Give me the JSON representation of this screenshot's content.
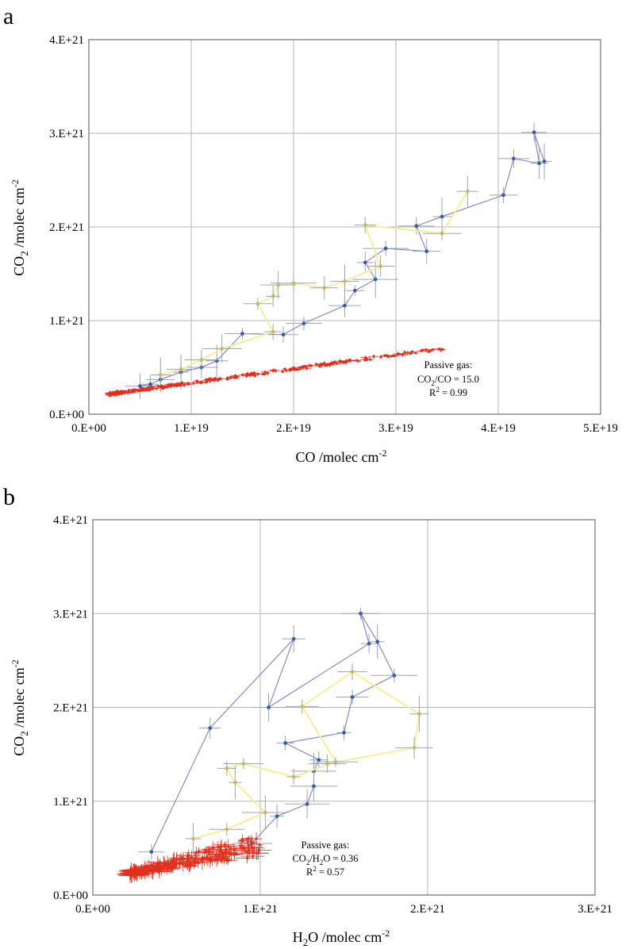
{
  "colors": {
    "blue_series": "#3a5f9a",
    "blue_line": "#8f86c9",
    "yellow_series": "#c8b86a",
    "yellow_line": "#f2ef9c",
    "red_series": "#e0301e",
    "error_bar": "#9aa3b8",
    "grid": "#b5b5b5"
  },
  "chart_data": [
    {
      "type": "scatter",
      "panel_label": "a",
      "xlabel": "CO /molec cm",
      "xlabel_sup": "-2",
      "ylabel_main": "CO",
      "ylabel_sub": "2",
      "ylabel_rest": " /molec cm",
      "ylabel_sup": "-2",
      "xlim": [
        0,
        5e+19
      ],
      "ylim": [
        0,
        4e+21
      ],
      "xticks": [
        0,
        1e+19,
        2e+19,
        3e+19,
        4e+19,
        5e+19
      ],
      "xtick_labels": [
        "0.E+00",
        "1.E+19",
        "2.E+19",
        "3.E+19",
        "4.E+19",
        "5.E+19"
      ],
      "yticks": [
        0,
        1e+21,
        2e+21,
        3e+21,
        4e+21
      ],
      "ytick_labels": [
        "0.E+00",
        "1.E+21",
        "2.E+21",
        "3.E+21",
        "4.E+21"
      ],
      "grid": true,
      "annotation": {
        "line1": "Passive gas:",
        "line2_a": "CO",
        "line2_sub": "2",
        "line2_b": "/CO = 15.0",
        "line3": "R",
        "line3_sup": "2",
        "line3_b": " = 0.99"
      },
      "series": [
        {
          "color_key": "blue",
          "points": [
            [
              5e+18,
              3e+20
            ],
            [
              6e+18,
              3.2e+20
            ],
            [
              7e+18,
              3.7e+20
            ],
            [
              9e+18,
              4.5e+20
            ],
            [
              1.1e+19,
              5e+20
            ],
            [
              1.25e+19,
              5.7e+20
            ],
            [
              1.5e+19,
              8.6e+20
            ],
            [
              1.9e+19,
              8.5e+20
            ],
            [
              2.1e+19,
              9.7e+20
            ],
            [
              2.5e+19,
              1.16e+21
            ],
            [
              2.6e+19,
              1.32e+21
            ],
            [
              2.8e+19,
              1.44e+21
            ],
            [
              2.7e+19,
              1.62e+21
            ],
            [
              2.9e+19,
              1.77e+21
            ],
            [
              3.3e+19,
              1.74e+21
            ],
            [
              3.2e+19,
              2.01e+21
            ],
            [
              3.45e+19,
              2.11e+21
            ],
            [
              4.05e+19,
              2.34e+21
            ],
            [
              4.15e+19,
              2.73e+21
            ],
            [
              4.4e+19,
              2.68e+21
            ],
            [
              4.35e+19,
              3.01e+21
            ],
            [
              4.45e+19,
              2.7e+21
            ]
          ]
        },
        {
          "color_key": "yellow",
          "points": [
            [
              7e+18,
              4.2e+20
            ],
            [
              9e+18,
              4.8e+20
            ],
            [
              1.1e+19,
              5.8e+20
            ],
            [
              1.3e+19,
              7e+20
            ],
            [
              1.8e+19,
              8.8e+20
            ],
            [
              1.65e+19,
              1.18e+21
            ],
            [
              1.8e+19,
              1.26e+21
            ],
            [
              1.85e+19,
              1.38e+21
            ],
            [
              2e+19,
              1.4e+21
            ],
            [
              2.3e+19,
              1.35e+21
            ],
            [
              2.5e+19,
              1.42e+21
            ],
            [
              2.85e+19,
              1.58e+21
            ],
            [
              2.7e+19,
              2.02e+21
            ],
            [
              3.45e+19,
              1.93e+21
            ],
            [
              3.7e+19,
              2.38e+21
            ]
          ]
        },
        {
          "color_key": "red",
          "slope": 15.0,
          "intercept": 1.85e+20,
          "x_range": [
            2e+18,
            3.5e+19
          ]
        }
      ]
    },
    {
      "type": "scatter",
      "panel_label": "b",
      "xlabel_main": "H",
      "xlabel_sub": "2",
      "xlabel_rest": "O /molec cm",
      "xlabel_sup": "-2",
      "ylabel_main": "CO",
      "ylabel_sub": "2",
      "ylabel_rest": " /molec cm",
      "ylabel_sup": "-2",
      "xlim": [
        0,
        3e+21
      ],
      "ylim": [
        0,
        4e+21
      ],
      "xticks": [
        0,
        1e+21,
        2e+21,
        3e+21
      ],
      "xtick_labels": [
        "0.E+00",
        "1.E+21",
        "2.E+21",
        "3.E+21"
      ],
      "yticks": [
        0,
        1e+21,
        2e+21,
        3e+21,
        4e+21
      ],
      "ytick_labels": [
        "0.E+00",
        "1.E+21",
        "2.E+21",
        "3.E+21",
        "4.E+21"
      ],
      "grid": true,
      "annotation": {
        "line1": "Passive gas:",
        "line2_a": "CO",
        "line2_sub": "2",
        "line2_b": "/H",
        "line2_sub2": "2",
        "line2_c": "O = 0.36",
        "line3": "R",
        "line3_sup": "2",
        "line3_b": " = 0.57"
      },
      "series": [
        {
          "color_key": "blue",
          "points": [
            [
              3.5e+20,
              4.6e+20
            ],
            [
              7e+20,
              1.78e+21
            ],
            [
              1.2e+21,
              2.73e+21
            ],
            [
              1.05e+21,
              2e+21
            ],
            [
              1.65e+21,
              2.68e+21
            ],
            [
              1.6e+21,
              3e+21
            ],
            [
              1.7e+21,
              2.7e+21
            ],
            [
              1.8e+21,
              2.34e+21
            ],
            [
              1.55e+21,
              2.11e+21
            ],
            [
              1.5e+21,
              1.73e+21
            ],
            [
              1.15e+21,
              1.62e+21
            ],
            [
              1.35e+21,
              1.44e+21
            ],
            [
              1.32e+21,
              1.32e+21
            ],
            [
              1.32e+21,
              1.16e+21
            ],
            [
              1.28e+21,
              9.7e+20
            ],
            [
              1.1e+21,
              8.4e+20
            ],
            [
              9.5e+20,
              5.5e+20
            ]
          ]
        },
        {
          "color_key": "yellow",
          "points": [
            [
              6e+20,
              6e+20
            ],
            [
              8e+20,
              7e+20
            ],
            [
              1.03e+21,
              8.8e+20
            ],
            [
              8.5e+20,
              1.2e+21
            ],
            [
              8e+20,
              1.35e+21
            ],
            [
              9e+20,
              1.4e+21
            ],
            [
              1.2e+21,
              1.26e+21
            ],
            [
              1.45e+21,
              1.42e+21
            ],
            [
              1.25e+21,
              2.01e+21
            ],
            [
              1.55e+21,
              2.38e+21
            ],
            [
              1.95e+21,
              1.93e+21
            ],
            [
              1.92e+21,
              1.57e+21
            ],
            [
              1.4e+21,
              1.4e+21
            ]
          ]
        },
        {
          "color_key": "red",
          "x_range": [
            2.2e+20,
            1e+21
          ],
          "y_range": [
            2.2e+20,
            7e+20
          ]
        }
      ]
    }
  ]
}
